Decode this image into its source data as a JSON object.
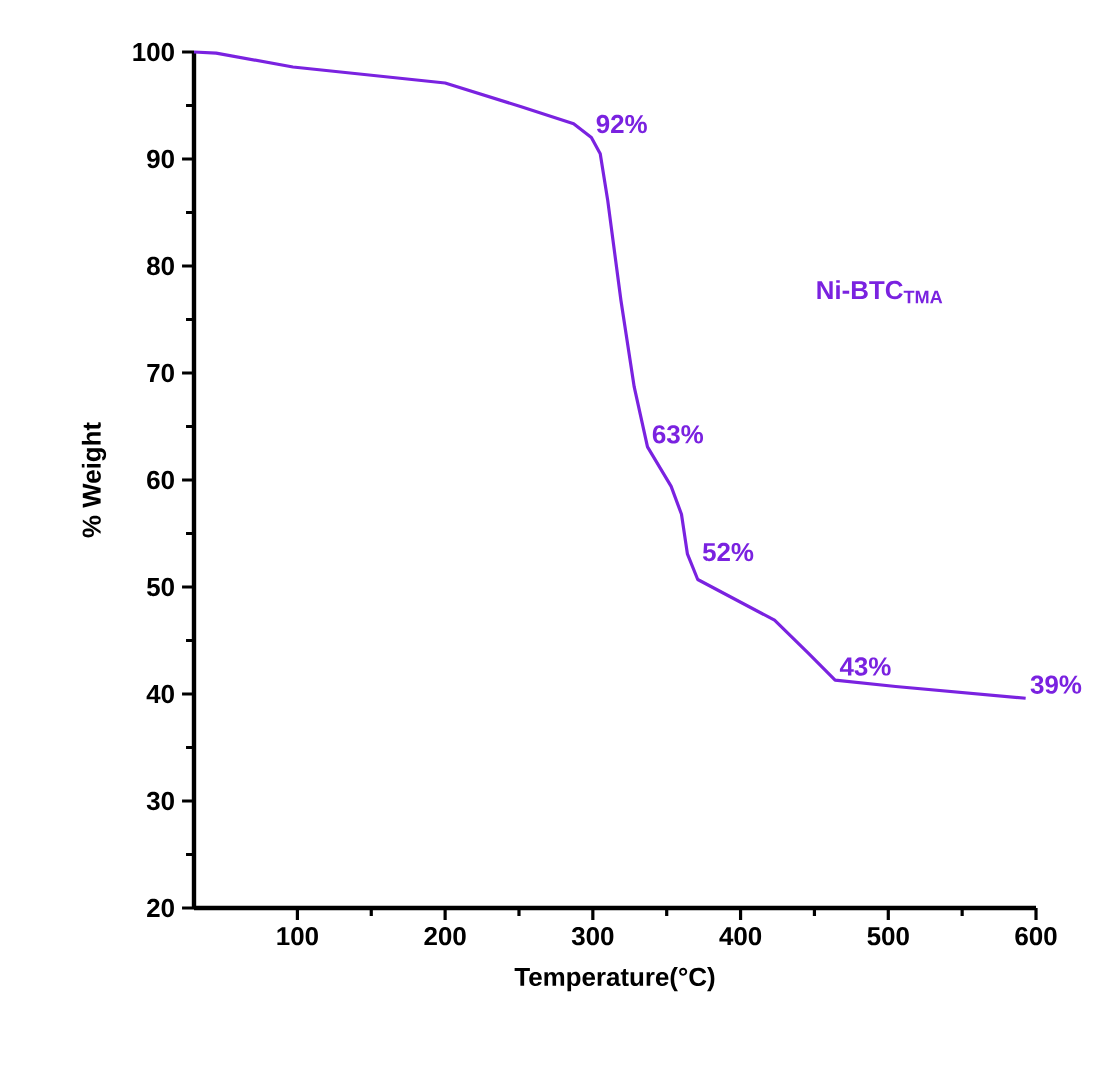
{
  "chart_data": {
    "type": "line",
    "xlabel": "Temperature(°C)",
    "ylabel": "% Weight",
    "x": [
      30,
      45,
      97,
      200,
      251,
      287,
      299,
      305,
      310,
      319,
      328,
      337,
      353,
      360,
      364,
      371,
      423,
      446,
      464,
      505,
      593
    ],
    "series": [
      {
        "name": "Ni-BTC$_{TMA}$",
        "color": "#7a22e0",
        "values": [
          100,
          99.9,
          98.6,
          97.1,
          94.9,
          93.3,
          92.0,
          90.5,
          86.2,
          76.8,
          68.7,
          63.1,
          59.4,
          56.8,
          53.1,
          50.7,
          46.9,
          43.8,
          41.3,
          40.7,
          39.6
        ]
      }
    ],
    "annotations": [
      {
        "text": "92%",
        "x": 299,
        "y": 92
      },
      {
        "text": "63%",
        "x": 337,
        "y": 63
      },
      {
        "text": "52%",
        "x": 371,
        "y": 52
      },
      {
        "text": "43%",
        "x": 464,
        "y": 41.3
      },
      {
        "text": "39%",
        "x": 593,
        "y": 39.6
      }
    ],
    "xlim": [
      30,
      600
    ],
    "ylim": [
      20,
      100
    ],
    "xticks": [
      100,
      200,
      300,
      400,
      500,
      600
    ],
    "yticks": [
      20,
      30,
      40,
      50,
      60,
      70,
      80,
      90,
      100
    ],
    "grid": false,
    "legend": false,
    "marker": "none",
    "line_style": "solid"
  }
}
